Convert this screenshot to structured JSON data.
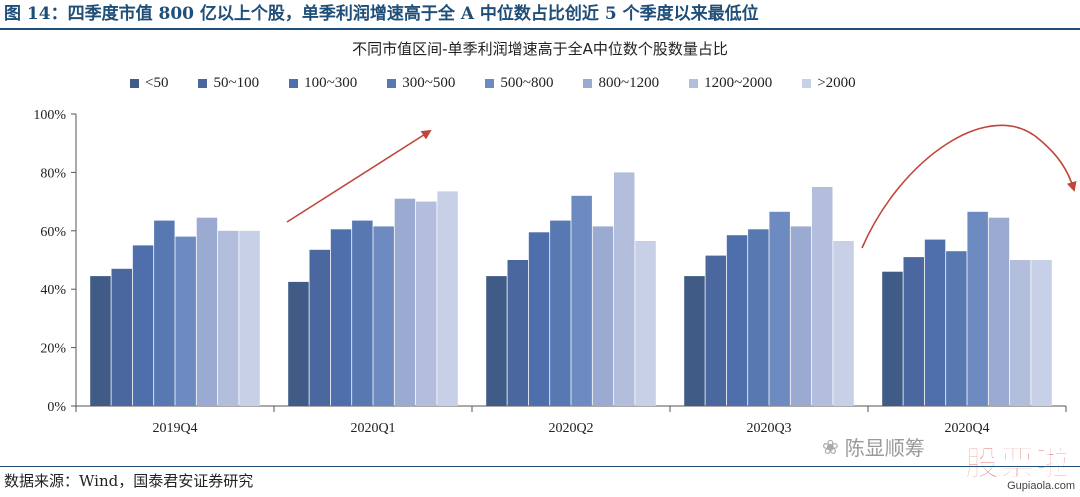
{
  "header": {
    "figure_label": "图 14：四季度市值 800 亿以上个股，单季利润增速高于全 A 中位数占比创近 5 个季度以来最低位"
  },
  "footer": {
    "source_text": "数据来源：Wind，国泰君安证券研究"
  },
  "watermark": {
    "account_name": "陈显顺筹",
    "logo_text": "股票啦",
    "logo_url": "Gupiaola.com"
  },
  "colors": {
    "series": [
      "#3f5b86",
      "#4a67a0",
      "#4f6fac",
      "#5878b2",
      "#6d8bc0",
      "#9aaad0",
      "#b2bedb",
      "#c7d0e6"
    ],
    "arrow": "#c0463a",
    "grid": "#d9d9d9"
  },
  "chart_data": {
    "type": "bar",
    "title": "不同市值区间-单季利润增速高于全A中位数个股数量占比",
    "xlabel": "",
    "ylabel": "",
    "categories": [
      "2019Q4",
      "2020Q1",
      "2020Q2",
      "2020Q3",
      "2020Q4"
    ],
    "ylim": [
      0,
      100
    ],
    "yticks": [
      "0%",
      "20%",
      "40%",
      "60%",
      "80%",
      "100%"
    ],
    "grid": false,
    "legend_position": "top",
    "series": [
      {
        "name": "<50",
        "values": [
          44.5,
          42.5,
          44.5,
          44.5,
          46
        ]
      },
      {
        "name": "50~100",
        "values": [
          47,
          53.5,
          50,
          51.5,
          51
        ]
      },
      {
        "name": "100~300",
        "values": [
          55,
          60.5,
          59.5,
          58.5,
          57
        ]
      },
      {
        "name": "300~500",
        "values": [
          63.5,
          63.5,
          63.5,
          60.5,
          53
        ]
      },
      {
        "name": "500~800",
        "values": [
          58,
          61.5,
          72,
          66.5,
          66.5
        ]
      },
      {
        "name": "800~1200",
        "values": [
          64.5,
          71,
          61.5,
          61.5,
          64.5
        ]
      },
      {
        "name": "1200~2000",
        "values": [
          60,
          70,
          80,
          75,
          50
        ]
      },
      {
        "name": ">2000",
        "values": [
          60,
          73.5,
          56.5,
          56.5,
          50
        ]
      }
    ]
  }
}
